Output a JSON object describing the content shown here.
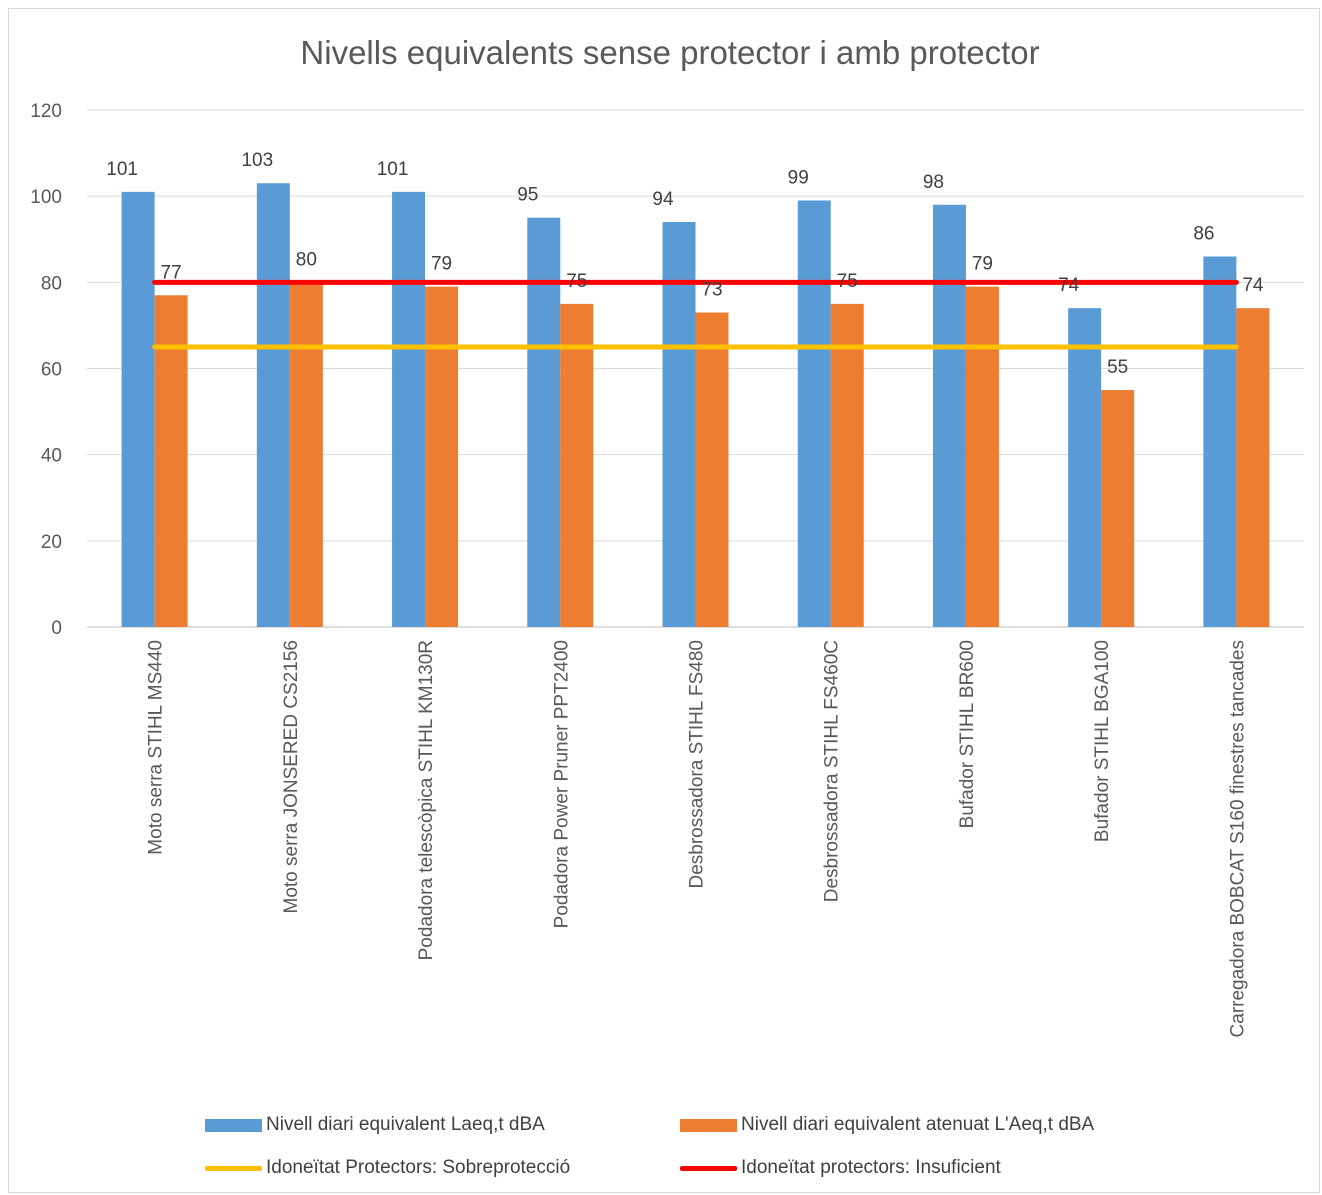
{
  "chart_data": {
    "type": "bar",
    "title": "Nivells equivalents sense protector i amb protector",
    "categories": [
      "Moto serra STIHL MS440",
      "Moto serra JONSERED CS2156",
      "Podadora telescòpica STIHL KM130R",
      "Podadora Power Pruner PPT2400",
      "Desbrossadora STIHL FS480",
      "Desbrossadora STIHL FS460C",
      "Bufador STIHL BR600",
      "Bufador STIHL BGA100",
      "Carregadora BOBCAT S160 finestres tancades"
    ],
    "series": [
      {
        "name": "Nivell diari equivalent Laeq,t dBA",
        "color": "#5b9bd5",
        "values": [
          101,
          103,
          101,
          95,
          94,
          99,
          98,
          74,
          86
        ]
      },
      {
        "name": "Nivell diari equivalent atenuat L'Aeq,t dBA",
        "color": "#ed7d31",
        "values": [
          77,
          80,
          79,
          75,
          73,
          75,
          79,
          55,
          74
        ]
      }
    ],
    "reference_lines": [
      {
        "name": "Idoneïtat Protectors: Sobreprotecció",
        "color": "#ffc000",
        "value": 65
      },
      {
        "name": "Idoneïtat protectors: Insuficient",
        "color": "#ff0000",
        "value": 80
      }
    ],
    "ylim": [
      0,
      120
    ],
    "yticks": [
      "0",
      "20",
      "40",
      "60",
      "80",
      "100",
      "120"
    ],
    "grid": true,
    "legend_position": "bottom"
  }
}
